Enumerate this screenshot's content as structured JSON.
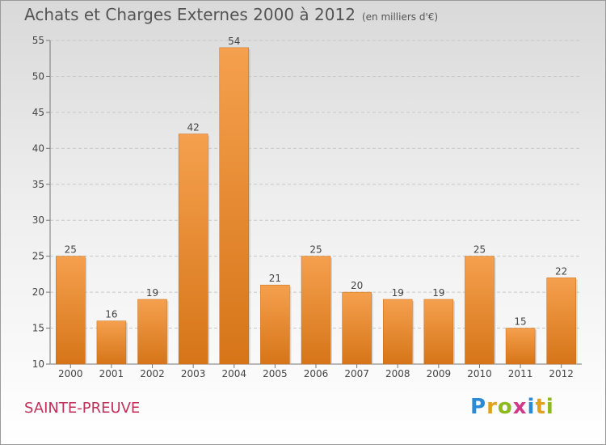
{
  "header": {
    "title": "Achats et Charges Externes 2000 à 2012",
    "unit": "(en milliers d'€)"
  },
  "footer": {
    "commune": "SAINTE-PREUVE",
    "brand": "Proxiti"
  },
  "colors": {
    "bar_light": "#f5a04e",
    "bar_dark": "#d67518",
    "commune": "#c0305a"
  },
  "chart_data": {
    "type": "bar",
    "title": "Achats et Charges Externes 2000 à 2012",
    "subtitle": "(en milliers d'€)",
    "categories": [
      "2000",
      "2001",
      "2002",
      "2003",
      "2004",
      "2005",
      "2006",
      "2007",
      "2008",
      "2009",
      "2010",
      "2011",
      "2012"
    ],
    "values": [
      25,
      16,
      19,
      42,
      54,
      21,
      25,
      20,
      19,
      19,
      25,
      15,
      22
    ],
    "ylim": [
      10,
      55
    ],
    "yticks": [
      10,
      15,
      20,
      25,
      30,
      35,
      40,
      45,
      50,
      55
    ],
    "grid": true,
    "legend": "none"
  }
}
